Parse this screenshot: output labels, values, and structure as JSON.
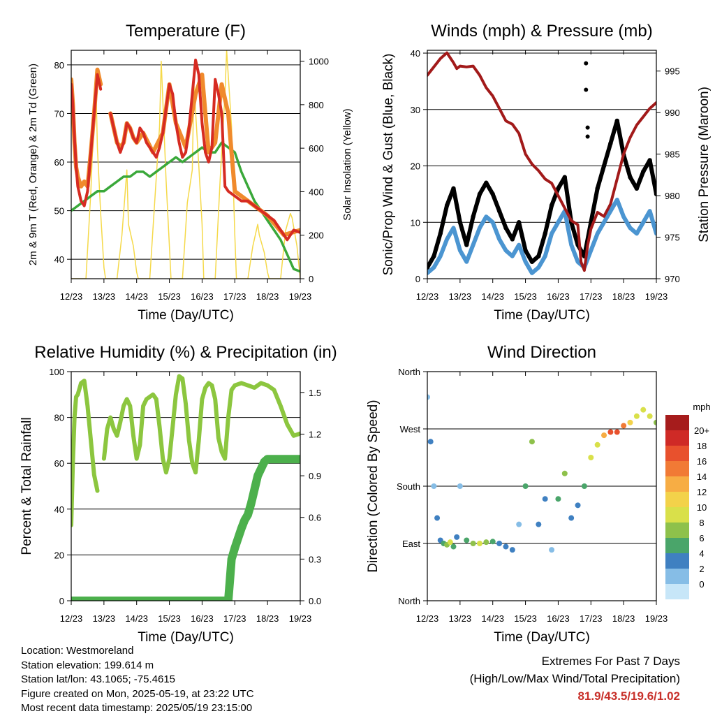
{
  "colors": {
    "temp2m": "#d62b22",
    "temp9m": "#f08a2c",
    "dewpoint": "#3aa83a",
    "solar": "#f5d94a",
    "wind": "#4b95d1",
    "gust": "#000000",
    "pressure": "#a21a1a",
    "rh": "#8cc63f",
    "precip": "#4cb04c"
  },
  "info": {
    "location": "Location: Westmoreland",
    "elevation": "Station elevation: 199.614 m",
    "latlon": "Station lat/lon: 43.1065; -75.4615",
    "created": "Figure created on Mon, 2025-05-19, at 23:22 UTC",
    "recent": "Most recent data timestamp: 2025/05/19 23:15:00"
  },
  "extremes": {
    "title": "Extremes For Past 7 Days",
    "subtitle": "(High/Low/Max Wind/Total Precipitation)",
    "values": "81.9/43.5/19.6/1.02"
  },
  "chart_data": [
    {
      "id": "temperature",
      "type": "line",
      "title": "Temperature (F)",
      "xlabel": "Time (Day/UTC)",
      "ylabel": "2m & 9m T (Red, Orange) & 2m Td (Green)",
      "y2label": "Solar Insolation (Yellow)",
      "xticks": [
        "12/23",
        "13/23",
        "14/23",
        "15/23",
        "16/23",
        "17/23",
        "18/23",
        "19/23"
      ],
      "xlim": [
        0,
        7
      ],
      "ylim": [
        36,
        83
      ],
      "yticks": [
        40,
        50,
        60,
        70,
        80
      ],
      "grid_y": [
        40,
        50,
        60,
        70,
        80
      ],
      "y2lim": [
        0,
        1050
      ],
      "y2ticks": [
        0,
        200,
        400,
        600,
        800,
        1000
      ],
      "series": [
        {
          "key": "temp2m",
          "x": [
            0,
            0.05,
            0.1,
            0.15,
            0.2,
            0.3,
            0.4,
            0.5,
            0.6,
            0.7,
            0.8,
            0.9,
            1.0,
            1.1,
            1.2,
            1.3,
            1.4,
            1.5,
            1.6,
            1.7,
            1.8,
            1.9,
            2.0,
            2.1,
            2.2,
            2.3,
            2.4,
            2.5,
            2.6,
            2.7,
            2.8,
            2.9,
            3.0,
            3.1,
            3.2,
            3.3,
            3.4,
            3.5,
            3.6,
            3.7,
            3.8,
            3.9,
            4.0,
            4.1,
            4.2,
            4.3,
            4.4,
            4.5,
            4.6,
            4.7,
            4.8,
            5.0,
            5.2,
            5.4,
            5.6,
            5.8,
            6.0,
            6.2,
            6.4,
            6.6,
            6.8,
            7.0
          ],
          "y": [
            76,
            72,
            65,
            59,
            55,
            52,
            51,
            54,
            62,
            70,
            78,
            75,
            null,
            null,
            70,
            67,
            64,
            62,
            64,
            68,
            67,
            65,
            64,
            67,
            66,
            64,
            63,
            62,
            61,
            63,
            66,
            71,
            76,
            74,
            68,
            64,
            61,
            62,
            67,
            74,
            81,
            78,
            68,
            62,
            60,
            63,
            77,
            74,
            70,
            55,
            54,
            53,
            52,
            52,
            51,
            50,
            49,
            48,
            46,
            44,
            46,
            45.5
          ]
        },
        {
          "key": "temp9m",
          "x": [
            0,
            0.05,
            0.1,
            0.15,
            0.2,
            0.3,
            0.4,
            0.5,
            0.6,
            0.7,
            0.8,
            0.9,
            1.0,
            1.2,
            1.3,
            1.4,
            1.5,
            1.6,
            1.7,
            1.8,
            1.9,
            2.0,
            2.2,
            2.5,
            2.8,
            3.0,
            3.2,
            3.5,
            3.8,
            4.0,
            4.2,
            4.4,
            4.6,
            4.8,
            5.0,
            5.4,
            6.0,
            6.5,
            7.0
          ],
          "y": [
            77,
            72,
            64,
            59,
            57,
            55,
            56,
            55,
            62,
            70,
            79,
            76,
            null,
            70,
            67,
            64,
            63,
            64,
            68,
            67,
            65,
            64,
            66,
            62,
            66,
            76,
            68,
            63,
            74,
            78,
            62,
            64,
            76,
            70,
            54,
            52,
            49,
            45,
            46
          ]
        },
        {
          "key": "dewpoint",
          "x": [
            0,
            0.2,
            0.4,
            0.6,
            0.8,
            1.0,
            1.2,
            1.4,
            1.6,
            1.8,
            2.0,
            2.2,
            2.4,
            2.6,
            2.8,
            3.0,
            3.2,
            3.4,
            3.6,
            3.8,
            4.0,
            4.2,
            4.4,
            4.6,
            4.8,
            5.0,
            5.2,
            5.4,
            5.6,
            5.8,
            6.0,
            6.2,
            6.4,
            6.6,
            6.8,
            7.0
          ],
          "y": [
            50,
            51,
            52,
            53,
            54,
            54,
            55,
            56,
            57,
            57,
            58,
            58,
            57,
            58,
            59,
            60,
            61,
            60,
            61,
            62,
            63,
            62,
            62,
            64,
            63,
            62,
            58,
            55,
            52,
            50,
            48,
            46,
            44,
            41,
            38,
            37.5
          ]
        }
      ],
      "solar": {
        "x": [
          0,
          0.45,
          0.6,
          0.75,
          0.8,
          0.9,
          1.0,
          1.05,
          1.4,
          1.55,
          1.7,
          1.75,
          1.9,
          2.0,
          2.05,
          2.4,
          2.55,
          2.7,
          2.75,
          2.9,
          3.0,
          3.05,
          3.4,
          3.55,
          3.7,
          3.75,
          3.9,
          4.0,
          4.05,
          4.4,
          4.55,
          4.7,
          4.75,
          4.9,
          5.0,
          5.05,
          5.4,
          5.55,
          5.7,
          5.75,
          5.9,
          6.0,
          6.05,
          6.4,
          6.55,
          6.7,
          6.75,
          6.9,
          7.0
        ],
        "y": [
          0,
          0,
          400,
          950,
          600,
          300,
          50,
          0,
          0,
          200,
          500,
          250,
          150,
          30,
          0,
          0,
          350,
          700,
          1000,
          450,
          150,
          0,
          0,
          350,
          500,
          900,
          520,
          250,
          0,
          0,
          450,
          850,
          1050,
          700,
          200,
          0,
          0,
          150,
          250,
          200,
          120,
          30,
          0,
          0,
          220,
          300,
          280,
          150,
          0
        ]
      }
    },
    {
      "id": "winds",
      "type": "scatter",
      "title": "Winds (mph) & Pressure (mb)",
      "xlabel": "Time (Day/UTC)",
      "ylabel": "Sonic/Prop Wind & Gust (Blue, Black)",
      "y2label": "Station Pressure (Maroon)",
      "xticks": [
        "12/23",
        "13/23",
        "14/23",
        "15/23",
        "16/23",
        "17/23",
        "18/23",
        "19/23"
      ],
      "xlim": [
        0,
        7
      ],
      "ylim": [
        0,
        40.5
      ],
      "yticks": [
        0,
        10,
        20,
        30,
        40
      ],
      "grid_y": [
        10,
        20,
        30,
        40
      ],
      "y2lim": [
        970,
        997.5
      ],
      "y2ticks": [
        970,
        975,
        980,
        985,
        990,
        995
      ],
      "wind": {
        "x": [
          0,
          0.2,
          0.4,
          0.6,
          0.8,
          1.0,
          1.2,
          1.4,
          1.6,
          1.8,
          2.0,
          2.2,
          2.4,
          2.6,
          2.8,
          3.0,
          3.2,
          3.4,
          3.6,
          3.8,
          4.0,
          4.2,
          4.4,
          4.6,
          4.8,
          5.0,
          5.2,
          5.4,
          5.6,
          5.8,
          6.0,
          6.2,
          6.4,
          6.6,
          6.8,
          7.0
        ],
        "y": [
          1,
          2,
          4,
          7,
          9,
          5,
          3,
          6,
          9,
          11,
          10,
          7,
          5,
          4,
          6,
          3,
          1,
          2,
          4,
          8,
          10,
          12,
          6,
          3,
          2,
          5,
          8,
          10,
          12,
          14,
          11,
          9,
          8,
          10,
          12,
          8
        ]
      },
      "gust": {
        "x": [
          0,
          0.2,
          0.4,
          0.6,
          0.8,
          1.0,
          1.2,
          1.4,
          1.6,
          1.8,
          2.0,
          2.2,
          2.4,
          2.6,
          2.8,
          3.0,
          3.2,
          3.4,
          3.6,
          3.8,
          4.0,
          4.2,
          4.4,
          4.6,
          4.8,
          5.0,
          5.2,
          5.4,
          5.6,
          5.8,
          6.0,
          6.2,
          6.4,
          6.6,
          6.8,
          7.0
        ],
        "y": [
          2,
          4,
          8,
          13,
          16,
          10,
          6,
          11,
          15,
          17,
          15,
          12,
          9,
          7,
          10,
          5,
          3,
          4,
          8,
          13,
          16,
          18,
          10,
          6,
          4,
          10,
          16,
          20,
          24,
          28,
          22,
          18,
          16,
          19,
          21,
          15
        ]
      },
      "gust_outliers": {
        "x": [
          4.85,
          4.85,
          4.9,
          4.9
        ],
        "y": [
          38.2,
          33.5,
          26.8,
          25.2
        ]
      },
      "pressure": {
        "x": [
          0,
          0.2,
          0.4,
          0.6,
          0.8,
          0.9,
          1.0,
          1.2,
          1.4,
          1.6,
          1.8,
          2.0,
          2.2,
          2.4,
          2.6,
          2.8,
          3.0,
          3.2,
          3.4,
          3.6,
          3.8,
          4.0,
          4.2,
          4.4,
          4.6,
          4.7,
          4.8,
          4.9,
          5.0,
          5.2,
          5.4,
          5.6,
          5.8,
          6.0,
          6.2,
          6.4,
          6.6,
          6.8,
          7.0
        ],
        "y": [
          994.5,
          995.5,
          996.5,
          997.2,
          996,
          995.3,
          995.6,
          995.5,
          995.6,
          994.5,
          993,
          992,
          990.5,
          989,
          988.6,
          987.5,
          985,
          983.8,
          983,
          982,
          981.5,
          980,
          978.5,
          977,
          976.5,
          972,
          971,
          974,
          976,
          978,
          977.5,
          979,
          982,
          985,
          987,
          988.5,
          989.5,
          990.5,
          991.2
        ]
      }
    },
    {
      "id": "humidity",
      "type": "line",
      "title": "Relative Humidity (%) & Precipitation (in)",
      "xlabel": "Time (Day/UTC)",
      "ylabel": "Percent & Total Rainfall",
      "xticks": [
        "12/23",
        "13/23",
        "14/23",
        "15/23",
        "16/23",
        "17/23",
        "18/23",
        "19/23"
      ],
      "xlim": [
        0,
        7
      ],
      "ylim": [
        0,
        100
      ],
      "yticks": [
        0,
        20,
        40,
        60,
        80,
        100
      ],
      "grid_y": [
        0,
        20,
        40,
        60,
        80,
        100
      ],
      "y2lim": [
        0,
        1.65
      ],
      "y2ticks": [
        "0.0",
        "0.3",
        "0.6",
        "0.9",
        "1.2",
        "1.5"
      ],
      "y2tick_values": [
        0,
        0.3,
        0.6,
        0.9,
        1.2,
        1.5
      ],
      "rh": {
        "x": [
          0,
          0.05,
          0.1,
          0.15,
          0.2,
          0.3,
          0.4,
          0.5,
          0.6,
          0.7,
          0.8,
          0.9,
          1.0,
          1.1,
          1.2,
          1.3,
          1.4,
          1.5,
          1.6,
          1.7,
          1.8,
          1.9,
          2.0,
          2.1,
          2.2,
          2.3,
          2.4,
          2.5,
          2.6,
          2.7,
          2.8,
          2.9,
          3.0,
          3.1,
          3.2,
          3.3,
          3.4,
          3.5,
          3.6,
          3.7,
          3.8,
          3.9,
          4.0,
          4.1,
          4.2,
          4.3,
          4.4,
          4.5,
          4.6,
          4.7,
          4.8,
          4.9,
          5.0,
          5.2,
          5.4,
          5.6,
          5.8,
          6.0,
          6.2,
          6.4,
          6.6,
          6.8,
          7.0
        ],
        "y": [
          33,
          60,
          80,
          89,
          90,
          95,
          96,
          85,
          70,
          55,
          48,
          null,
          62,
          75,
          80,
          75,
          72,
          78,
          85,
          88,
          85,
          72,
          62,
          68,
          85,
          88,
          89,
          90,
          88,
          76,
          62,
          56,
          62,
          76,
          90,
          98,
          97,
          86,
          70,
          60,
          56,
          70,
          88,
          93,
          95,
          94,
          88,
          71,
          65,
          62,
          80,
          92,
          94,
          95,
          94,
          93,
          95,
          94,
          92,
          85,
          77,
          72,
          73
        ]
      },
      "precip": {
        "x": [
          0,
          0.5,
          1.0,
          1.5,
          2.0,
          2.5,
          3.0,
          3.5,
          4.0,
          4.5,
          4.8,
          4.85,
          4.9,
          5.0,
          5.1,
          5.2,
          5.3,
          5.4,
          5.5,
          5.6,
          5.7,
          5.8,
          5.9,
          6.0,
          6.2,
          6.4,
          6.6,
          6.8,
          7.0
        ],
        "y": [
          0,
          0,
          0,
          0,
          0,
          0,
          0,
          0,
          0,
          0,
          0,
          0.15,
          0.3,
          0.38,
          0.45,
          0.52,
          0.58,
          0.62,
          0.7,
          0.8,
          0.9,
          0.95,
          1.0,
          1.02,
          1.02,
          1.02,
          1.02,
          1.02,
          1.02
        ]
      }
    },
    {
      "id": "wind_direction",
      "type": "scatter",
      "title": "Wind Direction",
      "xlabel": "Time (Day/UTC)",
      "ylabel": "Direction (Colored By Speed)",
      "xticks": [
        "12/23",
        "13/23",
        "14/23",
        "15/23",
        "16/23",
        "17/23",
        "18/23",
        "19/23"
      ],
      "xlim": [
        0,
        7
      ],
      "ylim": [
        0,
        360
      ],
      "yticks": [
        "North",
        "East",
        "South",
        "West",
        "North"
      ],
      "ytick_values": [
        0,
        90,
        180,
        270,
        360
      ],
      "grid_y": [
        90,
        180,
        270
      ],
      "legend": {
        "unit": "mph",
        "labels": [
          "20+",
          "18",
          "16",
          "14",
          "12",
          "10",
          "8",
          "6",
          "4",
          "2",
          "0"
        ],
        "colors": [
          "#a61c1c",
          "#cf2a26",
          "#e8512d",
          "#f17a35",
          "#f7ad44",
          "#f3d24a",
          "#d9e04a",
          "#8ec14b",
          "#4aa56a",
          "#3f80c1",
          "#86bde6",
          "#c7e6f8"
        ]
      },
      "points": {
        "x": [
          0,
          0.1,
          0.2,
          0.3,
          0.4,
          0.5,
          0.6,
          0.7,
          0.8,
          0.9,
          1.0,
          1.2,
          1.4,
          1.6,
          1.8,
          2.0,
          2.2,
          2.4,
          2.6,
          2.8,
          3.0,
          3.2,
          3.4,
          3.6,
          3.8,
          4.0,
          4.2,
          4.4,
          4.6,
          4.8,
          5.0,
          5.2,
          5.4,
          5.6,
          5.8,
          6.0,
          6.2,
          6.4,
          6.6,
          6.8,
          7.0
        ],
        "y": [
          320,
          250,
          180,
          130,
          95,
          90,
          88,
          92,
          85,
          100,
          180,
          95,
          90,
          90,
          92,
          93,
          90,
          85,
          80,
          120,
          180,
          250,
          120,
          160,
          80,
          160,
          200,
          130,
          150,
          180,
          225,
          245,
          260,
          265,
          265,
          275,
          280,
          290,
          300,
          290,
          280
        ],
        "speed": [
          2,
          3,
          2,
          3,
          4,
          6,
          8,
          10,
          6,
          4,
          2,
          5,
          7,
          9,
          8,
          6,
          4,
          3,
          3,
          2,
          5,
          7,
          4,
          3,
          2,
          6,
          8,
          4,
          3,
          5,
          9,
          10,
          14,
          18,
          17,
          16,
          12,
          10,
          9,
          10,
          8
        ]
      }
    }
  ]
}
